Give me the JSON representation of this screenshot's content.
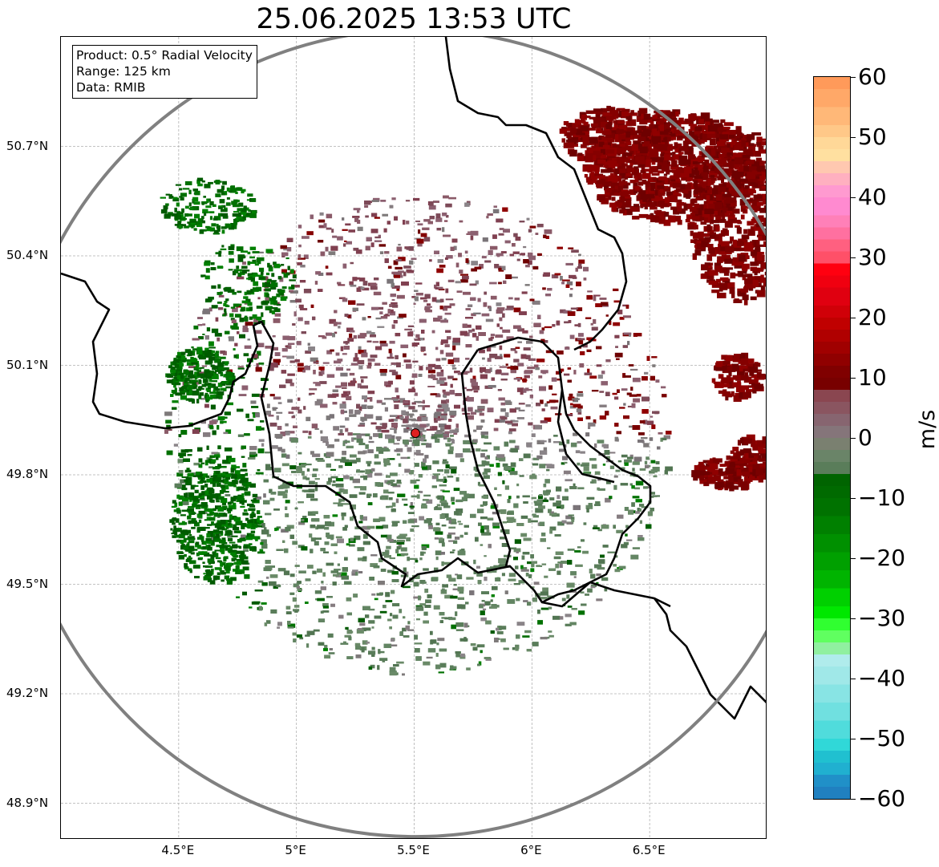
{
  "title": "25.06.2025 13:53 UTC",
  "info": {
    "product": "Product: 0.5° Radial Velocity",
    "range": "Range: 125 km",
    "source": "Data: RMIB"
  },
  "map": {
    "lon_range": [
      4.0,
      7.0
    ],
    "lat_range": [
      48.8,
      51.0
    ],
    "lat_ticks": [
      {
        "value": 50.7,
        "label": "50.7°N"
      },
      {
        "value": 50.4,
        "label": "50.4°N"
      },
      {
        "value": 50.1,
        "label": "50.1°N"
      },
      {
        "value": 49.8,
        "label": "49.8°N"
      },
      {
        "value": 49.5,
        "label": "49.5°N"
      },
      {
        "value": 49.2,
        "label": "49.2°N"
      },
      {
        "value": 48.9,
        "label": "48.9°N"
      }
    ],
    "lon_ticks": [
      {
        "value": 4.5,
        "label": "4.5°E"
      },
      {
        "value": 5.0,
        "label": "5°E"
      },
      {
        "value": 5.5,
        "label": "5.5°E"
      },
      {
        "value": 6.0,
        "label": "6°E"
      },
      {
        "value": 6.5,
        "label": "6.5°E"
      }
    ],
    "radar_site": {
      "lon": 5.505,
      "lat": 49.914
    },
    "range_ring_km": 125,
    "colors": {
      "range_ring": "#808080",
      "border": "#000000",
      "radar_marker": "#e02020",
      "outbound_strong": "#7a0000",
      "outbound_weak": "#8a5a68",
      "near_zero": "#857c80",
      "inbound_weak": "#5a7d5a",
      "inbound_strong": "#007000"
    }
  },
  "colorbar": {
    "label": "m/s",
    "min": -60,
    "max": 60,
    "ticks": [
      {
        "value": 60,
        "label": "60"
      },
      {
        "value": 50,
        "label": "50"
      },
      {
        "value": 40,
        "label": "40"
      },
      {
        "value": 30,
        "label": "30"
      },
      {
        "value": 20,
        "label": "20"
      },
      {
        "value": 10,
        "label": "10"
      },
      {
        "value": 0,
        "label": "0"
      },
      {
        "value": -10,
        "label": "−10"
      },
      {
        "value": -20,
        "label": "−20"
      },
      {
        "value": -30,
        "label": "−30"
      },
      {
        "value": -40,
        "label": "−40"
      },
      {
        "value": -50,
        "label": "−50"
      },
      {
        "value": -60,
        "label": "−60"
      }
    ],
    "bands": [
      {
        "from": 58,
        "to": 60,
        "color": "#ff9a5a"
      },
      {
        "from": 55,
        "to": 58,
        "color": "#ffa868"
      },
      {
        "from": 52,
        "to": 55,
        "color": "#ffb878"
      },
      {
        "from": 50,
        "to": 52,
        "color": "#ffc888"
      },
      {
        "from": 48,
        "to": 50,
        "color": "#ffd898"
      },
      {
        "from": 46,
        "to": 48,
        "color": "#ffe0a0"
      },
      {
        "from": 44,
        "to": 46,
        "color": "#ffc8b0"
      },
      {
        "from": 42,
        "to": 44,
        "color": "#ffb0c0"
      },
      {
        "from": 40,
        "to": 42,
        "color": "#ff9ad0"
      },
      {
        "from": 37,
        "to": 40,
        "color": "#ff8ad0"
      },
      {
        "from": 35,
        "to": 37,
        "color": "#ff80b8"
      },
      {
        "from": 33,
        "to": 35,
        "color": "#ff70a0"
      },
      {
        "from": 31,
        "to": 33,
        "color": "#ff6080"
      },
      {
        "from": 29,
        "to": 31,
        "color": "#ff5068"
      },
      {
        "from": 27,
        "to": 29,
        "color": "#ff0010"
      },
      {
        "from": 25,
        "to": 27,
        "color": "#f00010"
      },
      {
        "from": 22,
        "to": 25,
        "color": "#e00010"
      },
      {
        "from": 20,
        "to": 22,
        "color": "#d00008"
      },
      {
        "from": 18,
        "to": 20,
        "color": "#c00000"
      },
      {
        "from": 16,
        "to": 18,
        "color": "#b00000"
      },
      {
        "from": 14,
        "to": 16,
        "color": "#a00000"
      },
      {
        "from": 12,
        "to": 14,
        "color": "#900000"
      },
      {
        "from": 10,
        "to": 12,
        "color": "#800000"
      },
      {
        "from": 8,
        "to": 10,
        "color": "#780000"
      },
      {
        "from": 6,
        "to": 8,
        "color": "#8a4650"
      },
      {
        "from": 4,
        "to": 6,
        "color": "#8a5560"
      },
      {
        "from": 2,
        "to": 4,
        "color": "#876570"
      },
      {
        "from": 0,
        "to": 2,
        "color": "#85757a"
      },
      {
        "from": -2,
        "to": 0,
        "color": "#7a8070"
      },
      {
        "from": -4,
        "to": -2,
        "color": "#6a8468"
      },
      {
        "from": -6,
        "to": -4,
        "color": "#5a7d5a"
      },
      {
        "from": -8,
        "to": -6,
        "color": "#006400"
      },
      {
        "from": -10,
        "to": -8,
        "color": "#006a00"
      },
      {
        "from": -13,
        "to": -10,
        "color": "#007200"
      },
      {
        "from": -16,
        "to": -13,
        "color": "#008000"
      },
      {
        "from": -19,
        "to": -16,
        "color": "#009000"
      },
      {
        "from": -22,
        "to": -19,
        "color": "#00a000"
      },
      {
        "from": -25,
        "to": -22,
        "color": "#00b400"
      },
      {
        "from": -28,
        "to": -25,
        "color": "#00d000"
      },
      {
        "from": -30,
        "to": -28,
        "color": "#00e800"
      },
      {
        "from": -32,
        "to": -30,
        "color": "#30ff30"
      },
      {
        "from": -34,
        "to": -32,
        "color": "#60ff60"
      },
      {
        "from": -36,
        "to": -34,
        "color": "#90f0a0"
      },
      {
        "from": -38,
        "to": -36,
        "color": "#b0ecec"
      },
      {
        "from": -41,
        "to": -38,
        "color": "#a0e8e8"
      },
      {
        "from": -44,
        "to": -41,
        "color": "#88e4e4"
      },
      {
        "from": -47,
        "to": -44,
        "color": "#70e0e0"
      },
      {
        "from": -50,
        "to": -47,
        "color": "#50dcdc"
      },
      {
        "from": -52,
        "to": -50,
        "color": "#30d8d8"
      },
      {
        "from": -54,
        "to": -52,
        "color": "#20c0d0"
      },
      {
        "from": -56,
        "to": -54,
        "color": "#20b0d0"
      },
      {
        "from": -58,
        "to": -56,
        "color": "#2090c8"
      },
      {
        "from": -60,
        "to": -58,
        "color": "#2080c0"
      }
    ]
  }
}
